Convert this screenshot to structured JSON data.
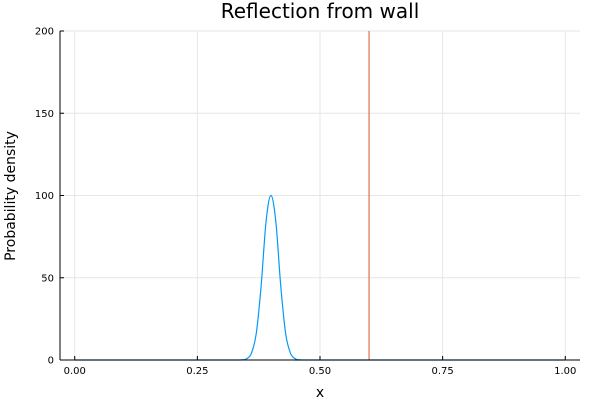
{
  "chart_data": {
    "type": "line",
    "title": "Reflection from wall",
    "xlabel": "x",
    "ylabel": "Probability density",
    "xlim": [
      -0.03,
      1.03
    ],
    "ylim": [
      0,
      200
    ],
    "x_ticks": [
      "0.00",
      "0.25",
      "0.50",
      "0.75",
      "1.00"
    ],
    "x_tick_values": [
      0,
      0.25,
      0.5,
      0.75,
      1.0
    ],
    "y_ticks": [
      "0",
      "50",
      "100",
      "150",
      "200"
    ],
    "y_tick_values": [
      0,
      50,
      100,
      150,
      200
    ],
    "grid": true,
    "legend": "none",
    "series": [
      {
        "color": "#009AF9",
        "x": [
          0.0,
          0.3,
          0.34,
          0.35,
          0.36,
          0.37,
          0.38,
          0.39,
          0.4,
          0.41,
          0.42,
          0.43,
          0.44,
          0.45,
          0.46,
          0.5,
          1.0
        ],
        "y": [
          0,
          0,
          0.1,
          0.7,
          4,
          16,
          45,
          84,
          100,
          84,
          45,
          16,
          4,
          0.7,
          0.1,
          0,
          0
        ]
      },
      {
        "color": "#E26F46",
        "x": [
          0.6,
          0.6
        ],
        "y": [
          0,
          200
        ]
      }
    ]
  }
}
